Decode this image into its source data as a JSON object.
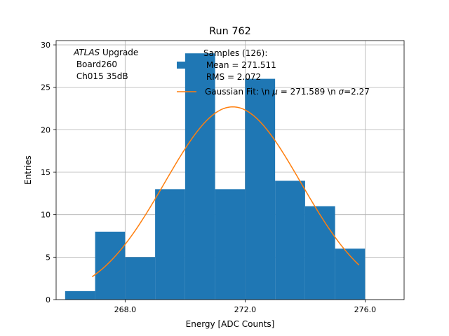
{
  "chart_data": {
    "type": "bar",
    "title": "Run 762",
    "xlabel": "Energy [ADC Counts]",
    "ylabel": "Entries",
    "xlim": [
      265.7,
      277.3
    ],
    "ylim": [
      0,
      30.5
    ],
    "grid": true,
    "x_ticks": [
      268.0,
      272.0,
      276.0
    ],
    "x_tick_labels": [
      "268.0",
      "272.0",
      "276.0"
    ],
    "y_ticks": [
      0,
      5,
      10,
      15,
      20,
      25,
      30
    ],
    "y_tick_labels": [
      "0",
      "5",
      "10",
      "15",
      "20",
      "25",
      "30"
    ],
    "bin_edges": [
      266,
      267,
      268,
      269,
      270,
      271,
      272,
      273,
      274,
      275,
      276
    ],
    "counts": [
      1,
      8,
      5,
      13,
      29,
      13,
      26,
      14,
      11,
      6
    ],
    "hist_color": "#1f77b4",
    "fit": {
      "mu": 271.589,
      "sigma": 2.27,
      "amplitude": 22.7,
      "x_range": [
        266.9,
        275.8
      ],
      "color": "#ff7f0e"
    },
    "annotation": {
      "atlas": "ATLAS",
      "upgrade": " Upgrade",
      "line2": " Board260",
      "line3": " Ch015 35dB"
    },
    "legend": {
      "location": "top-right",
      "hist_label_lines": [
        "Samples (126):",
        " Mean = 271.511",
        " RMS = 2.072"
      ],
      "fit_label_prefix": "Gaussian Fit: \\n ",
      "fit_mu_symbol": "μ",
      "fit_mu_text": " = 271.589 \\n ",
      "fit_sigma_symbol": "σ",
      "fit_sigma_text": "=2.27"
    }
  }
}
